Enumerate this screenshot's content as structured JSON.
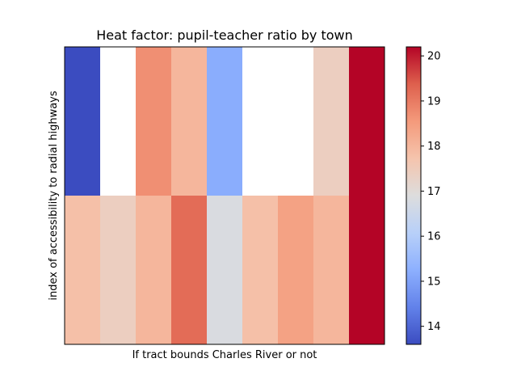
{
  "chart_data": {
    "type": "heatmap",
    "title": "Heat factor: pupil-teacher ratio by town",
    "xlabel": "If tract bounds Charles River or not",
    "ylabel": "index of accessibility to radial highways",
    "columns": 9,
    "rows": 2,
    "cells": [
      [
        13.6,
        null,
        18.7,
        18.0,
        15.2,
        null,
        null,
        17.4,
        20.2
      ],
      [
        17.8,
        17.4,
        18.0,
        19.2,
        16.8,
        17.8,
        18.4,
        18.0,
        20.2
      ]
    ],
    "colorbar": {
      "colormap": "coolwarm",
      "min": 13.6,
      "max": 20.2,
      "ticks": [
        "14",
        "15",
        "16",
        "17",
        "18",
        "19",
        "20"
      ]
    },
    "grid": false
  }
}
